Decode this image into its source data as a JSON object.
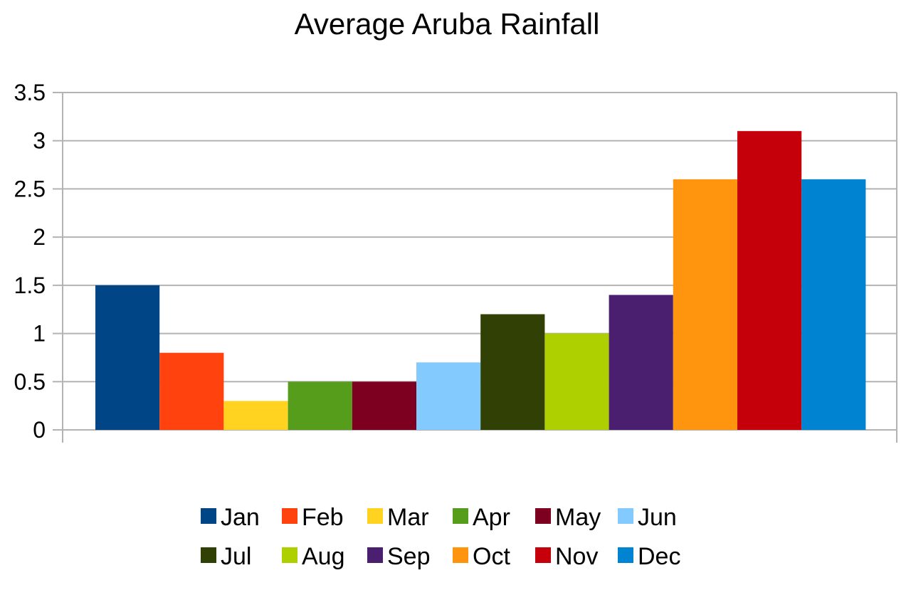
{
  "chart_data": {
    "type": "bar",
    "title": "Average Aruba Rainfall",
    "xlabel": "",
    "ylabel": "",
    "ylim": [
      0,
      3.5
    ],
    "yticks": [
      "0",
      "0.5",
      "1",
      "1.5",
      "2",
      "2.5",
      "3",
      "3.5"
    ],
    "grid": true,
    "legend_position": "bottom",
    "categories": [
      ""
    ],
    "series": [
      {
        "name": "Jan",
        "values": [
          1.5
        ],
        "color": "#004586"
      },
      {
        "name": "Feb",
        "values": [
          0.8
        ],
        "color": "#ff420e"
      },
      {
        "name": "Mar",
        "values": [
          0.3
        ],
        "color": "#ffd320"
      },
      {
        "name": "Apr",
        "values": [
          0.5
        ],
        "color": "#579d1c"
      },
      {
        "name": "May",
        "values": [
          0.5
        ],
        "color": "#7e0021"
      },
      {
        "name": "Jun",
        "values": [
          0.7
        ],
        "color": "#83caff"
      },
      {
        "name": "Jul",
        "values": [
          1.2
        ],
        "color": "#314004"
      },
      {
        "name": "Aug",
        "values": [
          1.0
        ],
        "color": "#aecf00"
      },
      {
        "name": "Sep",
        "values": [
          1.4
        ],
        "color": "#4b1f6f"
      },
      {
        "name": "Oct",
        "values": [
          2.6
        ],
        "color": "#ff950e"
      },
      {
        "name": "Nov",
        "values": [
          3.1
        ],
        "color": "#c5000b"
      },
      {
        "name": "Dec",
        "values": [
          2.6
        ],
        "color": "#0084d1"
      }
    ]
  },
  "colors": {
    "grid": "#b3b3b3",
    "axis": "#b3b3b3",
    "background": "#ffffff"
  }
}
